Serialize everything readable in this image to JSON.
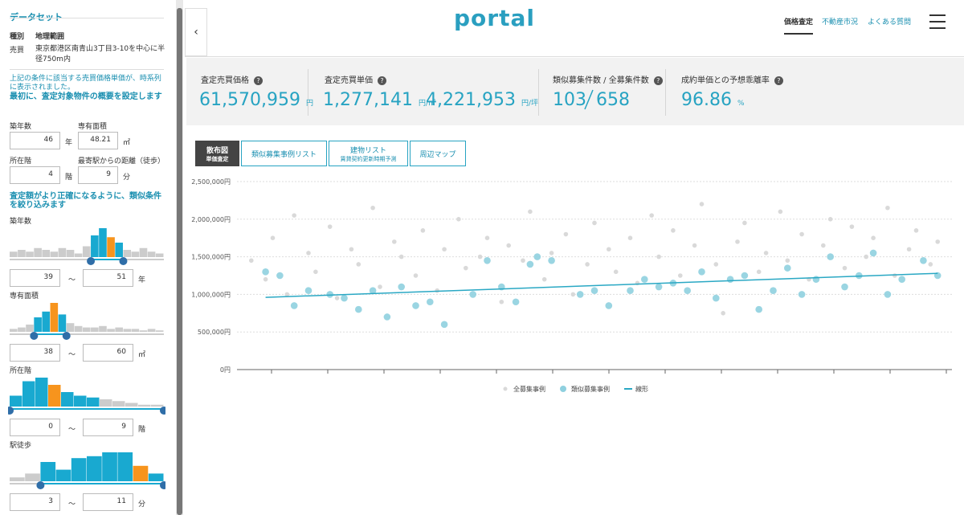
{
  "sidebar": {
    "title": "データセット",
    "type_label": "種別",
    "type_value": "地理範囲",
    "deal_label": "売買",
    "deal_value": "東京都港区南青山3丁目3-10を中心に半径750m内",
    "note": "上記の条件に該当する売買価格単価が、時系列に表示されました。",
    "step1": "最初に、査定対象物件の概要を設定します",
    "property": [
      {
        "label": "築年数",
        "value": 46,
        "unit": "年"
      },
      {
        "label": "専有面積",
        "value": 48.21,
        "unit": "㎡"
      },
      {
        "label": "所在階",
        "value": 4,
        "unit": "階"
      },
      {
        "label": "最寄駅からの距離（徒歩）",
        "value": 9,
        "unit": "分"
      }
    ],
    "step2": "査定額がより正確になるように、類似条件を絞り込みます",
    "range_sep": "～",
    "filters": [
      {
        "label": "築年数",
        "min": 39,
        "max": 51,
        "unit": "年",
        "bars": [
          3,
          4,
          3,
          5,
          4,
          3,
          5,
          4,
          2,
          6,
          12,
          16,
          11,
          8,
          4,
          3,
          5,
          3,
          2
        ],
        "colors": [
          "#cccccc",
          "#cccccc",
          "#cccccc",
          "#cccccc",
          "#cccccc",
          "#cccccc",
          "#cccccc",
          "#cccccc",
          "#cccccc",
          "#cccccc",
          "#19a9d0",
          "#19a9d0",
          "#f7941d",
          "#19a9d0",
          "#cccccc",
          "#cccccc",
          "#cccccc",
          "#cccccc",
          "#cccccc"
        ]
      },
      {
        "label": "専有面積",
        "min": 38,
        "max": 60,
        "unit": "㎡",
        "bars": [
          2,
          3,
          5,
          10,
          14,
          20,
          12,
          6,
          4,
          3,
          3,
          4,
          2,
          3,
          2,
          2,
          1,
          2,
          1
        ],
        "colors": [
          "#cccccc",
          "#cccccc",
          "#cccccc",
          "#19a9d0",
          "#19a9d0",
          "#f7941d",
          "#19a9d0",
          "#cccccc",
          "#cccccc",
          "#cccccc",
          "#cccccc",
          "#cccccc",
          "#cccccc",
          "#cccccc",
          "#cccccc",
          "#cccccc",
          "#cccccc",
          "#cccccc",
          "#cccccc"
        ]
      },
      {
        "label": "所在階",
        "min": 0,
        "max": 9,
        "unit": "階",
        "bars": [
          6,
          14,
          16,
          12,
          8,
          6,
          5,
          4,
          3,
          2,
          1,
          1
        ],
        "colors": [
          "#19a9d0",
          "#19a9d0",
          "#19a9d0",
          "#f7941d",
          "#19a9d0",
          "#19a9d0",
          "#19a9d0",
          "#cccccc",
          "#cccccc",
          "#cccccc",
          "#cccccc",
          "#cccccc"
        ]
      },
      {
        "label": "駅徒歩",
        "min": 3,
        "max": 11,
        "unit": "分",
        "bars": [
          2,
          4,
          10,
          6,
          12,
          13,
          15,
          15,
          8,
          4
        ],
        "colors": [
          "#cccccc",
          "#cccccc",
          "#19a9d0",
          "#19a9d0",
          "#19a9d0",
          "#19a9d0",
          "#19a9d0",
          "#19a9d0",
          "#f7941d",
          "#19a9d0"
        ]
      }
    ]
  },
  "header": {
    "logo": "portal",
    "nav": [
      "価格査定",
      "不動産市況",
      "よくある質問"
    ]
  },
  "stats": {
    "price_label": "査定売買価格",
    "price": "61,570,959",
    "price_unit": "円",
    "unit_label": "査定売買単価",
    "unit_m2": "1,277,141",
    "unit_m2_unit": "円/㎡",
    "unit_tsubo": "4,221,953",
    "unit_tsubo_unit": "円/坪",
    "count_label": "類似募集件数 / 全募集件数",
    "similar": 103,
    "total": 658,
    "ratio_label": "成約単価との予想乖離率",
    "ratio": 96.86,
    "ratio_unit": "%"
  },
  "tabs": [
    {
      "label": "散布図",
      "sub": "単価査定"
    },
    {
      "label": "類似募集事例リスト"
    },
    {
      "label": "建物リスト",
      "sub": "賃貸契約更新時期予測"
    },
    {
      "label": "周辺マップ"
    }
  ],
  "chart_data": {
    "type": "scatter",
    "xlim": [
      0,
      100
    ],
    "ylim": [
      0,
      2500000
    ],
    "grid": true,
    "yticks": [
      {
        "value": 0,
        "label": "0円"
      },
      {
        "value": 500000,
        "label": "500,000円"
      },
      {
        "value": 1000000,
        "label": "1,000,000円"
      },
      {
        "value": 1500000,
        "label": "1,500,000円"
      },
      {
        "value": 2000000,
        "label": "2,000,000円"
      },
      {
        "value": 2500000,
        "label": "2,500,000円"
      }
    ],
    "series": [
      {
        "name": "全募集事例",
        "color": "#d9d9d9",
        "x": [
          2,
          4,
          5,
          7,
          8,
          10,
          11,
          13,
          14,
          16,
          17,
          19,
          20,
          22,
          23,
          25,
          26,
          28,
          29,
          31,
          32,
          34,
          35,
          37,
          38,
          40,
          41,
          43,
          44,
          46,
          47,
          49,
          50,
          52,
          53,
          55,
          56,
          58,
          59,
          61,
          62,
          64,
          65,
          67,
          68,
          70,
          71,
          73,
          74,
          76,
          77,
          79,
          80,
          82,
          83,
          85,
          86,
          88,
          89,
          91,
          92,
          94,
          95,
          97,
          98
        ],
        "values": [
          1450000,
          1200000,
          1750000,
          1000000,
          2050000,
          1550000,
          1300000,
          1900000,
          950000,
          1600000,
          1400000,
          2150000,
          1100000,
          1700000,
          1500000,
          1250000,
          1850000,
          1050000,
          1600000,
          2000000,
          1350000,
          1500000,
          1750000,
          900000,
          1650000,
          1450000,
          2100000,
          1200000,
          1550000,
          1800000,
          1000000,
          1400000,
          1950000,
          1600000,
          1300000,
          1750000,
          1150000,
          2050000,
          1500000,
          1850000,
          1250000,
          1650000,
          2200000,
          1400000,
          750000,
          1700000,
          1950000,
          1300000,
          1550000,
          2100000,
          1450000,
          1800000,
          1200000,
          1650000,
          2000000,
          1350000,
          1900000,
          1500000,
          1750000,
          2150000,
          1250000,
          1600000,
          1850000,
          1400000,
          1700000
        ]
      },
      {
        "name": "類似募集事例",
        "color": "#8fd0df",
        "x": [
          4,
          6,
          8,
          10,
          13,
          15,
          17,
          19,
          21,
          23,
          25,
          27,
          29,
          33,
          35,
          37,
          39,
          41,
          42,
          44,
          48,
          50,
          52,
          55,
          57,
          59,
          61,
          63,
          65,
          67,
          69,
          71,
          73,
          75,
          77,
          79,
          81,
          83,
          85,
          87,
          89,
          91,
          93,
          96,
          98
        ],
        "values": [
          1300000,
          1250000,
          850000,
          1050000,
          1000000,
          950000,
          800000,
          1050000,
          700000,
          1100000,
          850000,
          900000,
          600000,
          1000000,
          1450000,
          1100000,
          900000,
          1400000,
          1500000,
          1450000,
          1000000,
          1050000,
          850000,
          1050000,
          1200000,
          1100000,
          1150000,
          1050000,
          1300000,
          950000,
          1200000,
          1250000,
          800000,
          1050000,
          1350000,
          1000000,
          1200000,
          1500000,
          1100000,
          1250000,
          1550000,
          1000000,
          1200000,
          1450000,
          1250000
        ]
      },
      {
        "name": "線形",
        "type": "line",
        "color": "#2aa8c4",
        "x": [
          4,
          98
        ],
        "values": [
          960000,
          1280000
        ]
      }
    ]
  }
}
